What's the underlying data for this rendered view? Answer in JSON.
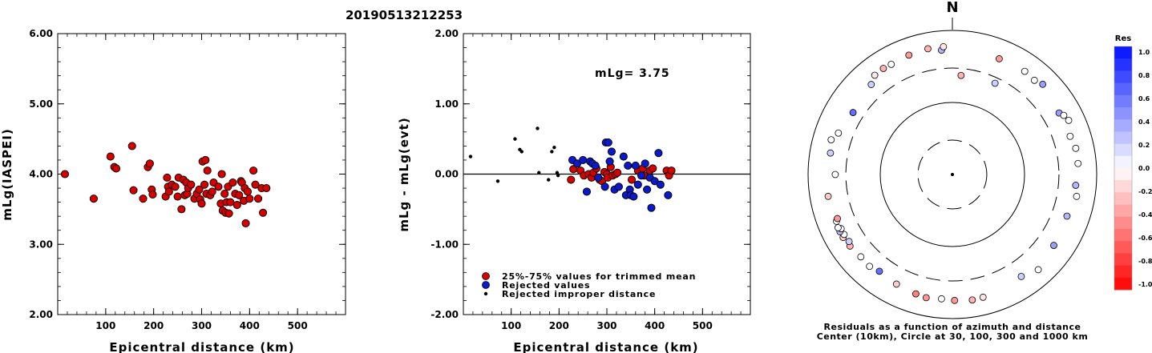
{
  "title": "20190513212253",
  "colors": {
    "accepted": "#d40000",
    "rejected": "#0a1ac8",
    "improper": "#000000"
  },
  "chart_data": [
    {
      "type": "scatter",
      "xlabel": "Epicentral distance (km)",
      "ylabel": "mLg(IASPEI)",
      "xlim": [
        0,
        600
      ],
      "ylim": [
        2.0,
        6.0
      ],
      "xticks": [
        "100",
        "200",
        "300",
        "400",
        "500"
      ],
      "yticks": [
        "2.00",
        "3.00",
        "4.00",
        "5.00",
        "6.00"
      ],
      "series": [
        {
          "marker": "red-circle",
          "points": [
            [
              15,
              4.0
            ],
            [
              75,
              3.65
            ],
            [
              110,
              4.25
            ],
            [
              118,
              4.1
            ],
            [
              122,
              4.08
            ],
            [
              155,
              4.4
            ],
            [
              158,
              3.77
            ],
            [
              178,
              3.65
            ],
            [
              188,
              4.1
            ],
            [
              192,
              4.15
            ],
            [
              196,
              3.78
            ],
            [
              198,
              3.71
            ],
            [
              225,
              3.68
            ],
            [
              228,
              3.95
            ],
            [
              230,
              3.82
            ],
            [
              232,
              3.75
            ],
            [
              238,
              3.85
            ],
            [
              245,
              3.82
            ],
            [
              250,
              3.68
            ],
            [
              252,
              3.95
            ],
            [
              258,
              3.5
            ],
            [
              262,
              3.92
            ],
            [
              265,
              3.7
            ],
            [
              268,
              3.88
            ],
            [
              270,
              3.72
            ],
            [
              272,
              3.8
            ],
            [
              278,
              3.85
            ],
            [
              285,
              3.65
            ],
            [
              290,
              3.72
            ],
            [
              295,
              3.78
            ],
            [
              297,
              3.64
            ],
            [
              300,
              3.58
            ],
            [
              302,
              4.18
            ],
            [
              306,
              3.85
            ],
            [
              308,
              4.2
            ],
            [
              310,
              3.72
            ],
            [
              312,
              4.05
            ],
            [
              318,
              3.7
            ],
            [
              322,
              3.75
            ],
            [
              325,
              3.88
            ],
            [
              335,
              3.82
            ],
            [
              340,
              3.58
            ],
            [
              342,
              4.0
            ],
            [
              344,
              3.48
            ],
            [
              348,
              3.72
            ],
            [
              350,
              3.45
            ],
            [
              352,
              3.6
            ],
            [
              355,
              3.82
            ],
            [
              357,
              3.44
            ],
            [
              360,
              3.6
            ],
            [
              365,
              3.88
            ],
            [
              370,
              3.72
            ],
            [
              374,
              3.56
            ],
            [
              378,
              3.7
            ],
            [
              382,
              3.9
            ],
            [
              384,
              3.88
            ],
            [
              388,
              3.62
            ],
            [
              390,
              3.8
            ],
            [
              392,
              3.3
            ],
            [
              396,
              3.75
            ],
            [
              400,
              3.65
            ],
            [
              408,
              4.05
            ],
            [
              412,
              3.85
            ],
            [
              418,
              3.65
            ],
            [
              425,
              3.8
            ],
            [
              428,
              3.45
            ],
            [
              435,
              3.8
            ]
          ]
        }
      ]
    },
    {
      "type": "scatter",
      "xlabel": "Epicentral distance (km)",
      "ylabel": "mLg - mLg(evt)",
      "xlim": [
        0,
        600
      ],
      "ylim": [
        -2.0,
        2.0
      ],
      "xticks": [
        "100",
        "200",
        "300",
        "400",
        "500"
      ],
      "yticks": [
        "-2.00",
        "-1.00",
        "0.00",
        "1.00",
        "2.00"
      ],
      "annotation": "mLg= 3.75",
      "reference_line": 0.0,
      "legend": [
        "25%-75% values for trimmed mean",
        "Rejected values",
        "Rejected improper distance"
      ],
      "legend_position": "bottom-left",
      "series": [
        {
          "name": "25%-75% values for trimmed mean",
          "marker": "red-circle",
          "points": [
            [
              225,
              -0.08
            ],
            [
              230,
              0.07
            ],
            [
              245,
              0.05
            ],
            [
              252,
              -0.02
            ],
            [
              262,
              0.0
            ],
            [
              268,
              -0.05
            ],
            [
              272,
              0.02
            ],
            [
              278,
              0.08
            ],
            [
              285,
              -0.08
            ],
            [
              290,
              -0.1
            ],
            [
              295,
              0.03
            ],
            [
              300,
              0.0
            ],
            [
              302,
              -0.05
            ],
            [
              308,
              0.1
            ],
            [
              312,
              -0.02
            ],
            [
              318,
              0.0
            ],
            [
              322,
              0.02
            ],
            [
              352,
              -0.08
            ],
            [
              365,
              0.05
            ],
            [
              375,
              0.08
            ],
            [
              378,
              -0.02
            ],
            [
              390,
              0.05
            ],
            [
              396,
              0.08
            ],
            [
              425,
              0.05
            ],
            [
              430,
              -0.02
            ],
            [
              435,
              0.05
            ]
          ]
        },
        {
          "name": "Rejected values",
          "marker": "blue-circle",
          "points": [
            [
              228,
              0.2
            ],
            [
              238,
              0.15
            ],
            [
              250,
              0.2
            ],
            [
              258,
              -0.25
            ],
            [
              265,
              0.18
            ],
            [
              270,
              0.15
            ],
            [
              276,
              0.12
            ],
            [
              282,
              -0.05
            ],
            [
              296,
              -0.18
            ],
            [
              298,
              0.45
            ],
            [
              303,
              0.45
            ],
            [
              306,
              0.18
            ],
            [
              310,
              0.32
            ],
            [
              316,
              -0.22
            ],
            [
              325,
              -0.18
            ],
            [
              335,
              0.25
            ],
            [
              340,
              -0.3
            ],
            [
              344,
              0.12
            ],
            [
              348,
              -0.22
            ],
            [
              350,
              -0.3
            ],
            [
              356,
              -0.32
            ],
            [
              360,
              0.12
            ],
            [
              365,
              -0.15
            ],
            [
              372,
              -0.02
            ],
            [
              380,
              0.15
            ],
            [
              384,
              -0.22
            ],
            [
              390,
              -0.05
            ],
            [
              393,
              -0.48
            ],
            [
              400,
              -0.1
            ],
            [
              408,
              0.3
            ],
            [
              412,
              -0.15
            ],
            [
              428,
              -0.3
            ]
          ]
        },
        {
          "name": "Rejected improper distance",
          "marker": "black-dot",
          "points": [
            [
              15,
              0.25
            ],
            [
              72,
              -0.1
            ],
            [
              108,
              0.5
            ],
            [
              118,
              0.35
            ],
            [
              122,
              0.32
            ],
            [
              155,
              0.65
            ],
            [
              158,
              0.02
            ],
            [
              178,
              -0.08
            ],
            [
              185,
              0.32
            ],
            [
              190,
              0.38
            ],
            [
              196,
              0.02
            ],
            [
              198,
              -0.02
            ]
          ]
        }
      ]
    },
    {
      "type": "scatter",
      "subtype": "polar",
      "north_label": "N",
      "caption_line1": "Residuals as a function of azimuth and distance",
      "caption_line2": "Center (10km), Circle at 30, 100, 300 and 1000 km",
      "rings_km": [
        30,
        100,
        300,
        1000
      ],
      "ring_styles": [
        "dashed",
        "solid",
        "dashed",
        "solid"
      ],
      "center_km": 10,
      "colorbar": {
        "title": "Res",
        "ticks": [
          "1.0",
          "0.8",
          "0.6",
          "0.4",
          "0.2",
          "0.0",
          "-0.2",
          "-0.4",
          "-0.6",
          "-0.8",
          "-1.0"
        ],
        "range": [
          -1.0,
          1.0
        ]
      },
      "points_az_dist_res": [
        [
          25,
          250,
          0.2
        ],
        [
          22,
          540,
          -0.4
        ],
        [
          35,
          560,
          0.0
        ],
        [
          41,
          540,
          0.0
        ],
        [
          45,
          590,
          0.4
        ],
        [
          60,
          510,
          0.4
        ],
        [
          62,
          560,
          0.0
        ],
        [
          65,
          600,
          0.0
        ],
        [
          72,
          520,
          0.0
        ],
        [
          78,
          560,
          0.0
        ],
        [
          85,
          560,
          0.0
        ],
        [
          95,
          520,
          0.3
        ],
        [
          100,
          560,
          0.0
        ],
        [
          110,
          490,
          0.3
        ],
        [
          125,
          520,
          0.4
        ],
        [
          138,
          600,
          0.0
        ],
        [
          146,
          510,
          0.2
        ],
        [
          166,
          570,
          -0.1
        ],
        [
          171,
          580,
          -0.3
        ],
        [
          179,
          560,
          -0.4
        ],
        [
          185,
          540,
          0.0
        ],
        [
          192,
          560,
          -0.4
        ],
        [
          197,
          540,
          -0.5
        ],
        [
          207,
          510,
          -0.2
        ],
        [
          217,
          480,
          0.6
        ],
        [
          222,
          520,
          0.0
        ],
        [
          228,
          510,
          0.0
        ],
        [
          235,
          540,
          -0.3
        ],
        [
          237,
          510,
          0.2
        ],
        [
          240,
          560,
          -0.2
        ],
        [
          241,
          520,
          0.0
        ],
        [
          243,
          560,
          0.3
        ],
        [
          244,
          520,
          0.0
        ],
        [
          245,
          560,
          0.0
        ],
        [
          248,
          540,
          0.0
        ],
        [
          249,
          510,
          -0.4
        ],
        [
          260,
          560,
          -0.2
        ],
        [
          270,
          420,
          0.0
        ],
        [
          280,
          520,
          0.2
        ],
        [
          286,
          560,
          0.0
        ],
        [
          290,
          480,
          0.0
        ],
        [
          302,
          420,
          0.6
        ],
        [
          318,
          480,
          0.2
        ],
        [
          322,
          560,
          -0.1
        ],
        [
          327,
          570,
          -0.3
        ],
        [
          331,
          560,
          0.0
        ],
        [
          340,
          580,
          -0.4
        ],
        [
          349,
          600,
          -0.3
        ],
        [
          355,
          540,
          0.3
        ],
        [
          356,
          600,
          -0.1
        ],
        [
          5,
          240,
          -0.3
        ]
      ]
    }
  ]
}
